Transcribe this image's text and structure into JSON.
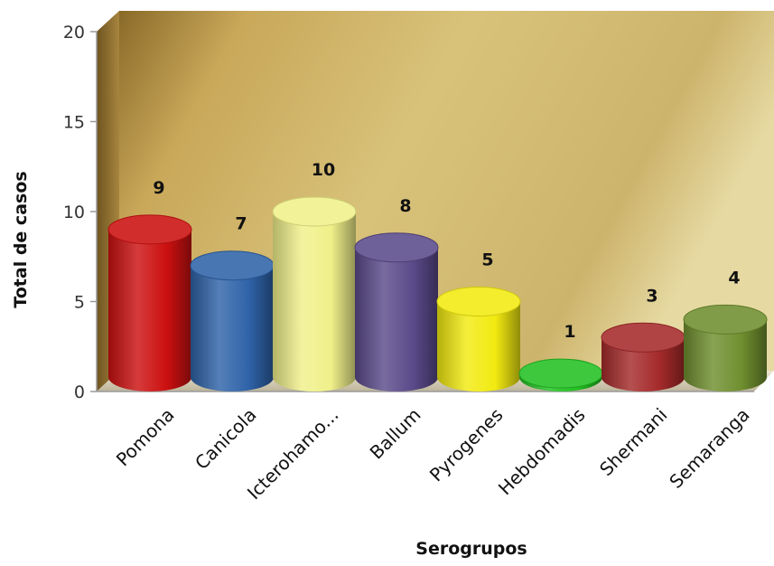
{
  "chart_data": {
    "type": "bar",
    "categories": [
      "Pomona",
      "Canicola",
      "Icterohamo...",
      "Ballum",
      "Pyrogenes",
      "Hebdomadis",
      "Shermani",
      "Semaranga"
    ],
    "values": [
      9,
      7,
      10,
      8,
      5,
      1,
      3,
      4
    ],
    "value_labels": [
      "9",
      "7",
      "10",
      "8",
      "5",
      "1",
      "3",
      "4"
    ],
    "colors": [
      "#cc1010",
      "#2f63a8",
      "#f0f08a",
      "#5a4a8a",
      "#f2ea10",
      "#22c022",
      "#a52a2a",
      "#6f8f2f"
    ],
    "xlabel": "Serogrupos",
    "ylabel": "Total de casos",
    "ylim": [
      0,
      20
    ],
    "yticks": [
      "0",
      "5",
      "10",
      "15",
      "20"
    ],
    "style": "3d-cylinder",
    "grid": false,
    "legend": "none"
  }
}
